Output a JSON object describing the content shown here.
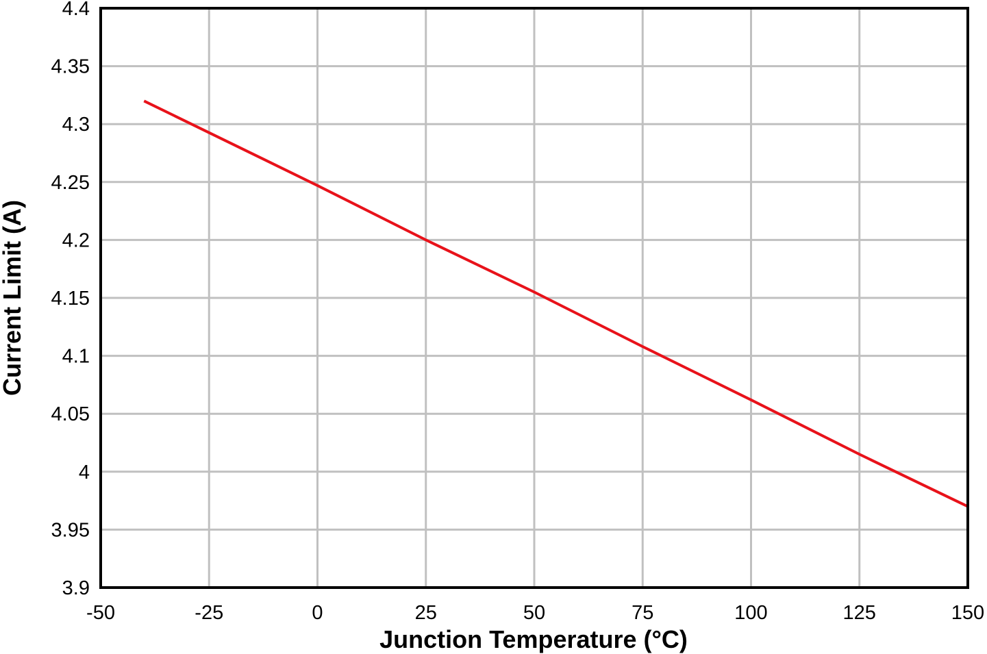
{
  "chart_data": {
    "type": "line",
    "title": "",
    "xlabel": "Junction Temperature (°C)",
    "ylabel": "Current Limit (A)",
    "xlim": [
      -50,
      150
    ],
    "ylim": [
      3.9,
      4.4
    ],
    "x_ticks": [
      "-50",
      "-25",
      "0",
      "25",
      "50",
      "75",
      "100",
      "125",
      "150"
    ],
    "y_ticks": [
      "3.9",
      "3.95",
      "4",
      "4.05",
      "4.1",
      "4.15",
      "4.2",
      "4.25",
      "4.3",
      "4.35",
      "4.4"
    ],
    "grid": true,
    "legend": "none",
    "series": [
      {
        "color": "#e8121a",
        "x": [
          -40,
          0,
          25,
          50,
          75,
          100,
          125,
          150
        ],
        "y": [
          4.32,
          4.247,
          4.2,
          4.155,
          4.108,
          4.062,
          4.015,
          3.97
        ]
      }
    ]
  }
}
